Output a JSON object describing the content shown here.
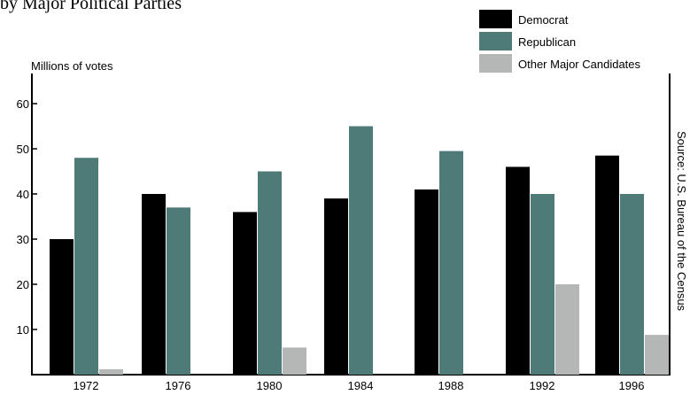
{
  "chart_data": {
    "type": "bar",
    "title": "by Major Political Parties",
    "ylabel": "Millions of votes",
    "xlabel": "",
    "categories": [
      "1972",
      "1976",
      "1980",
      "1984",
      "1988",
      "1992",
      "1996"
    ],
    "series": [
      {
        "name": "Democrat",
        "color": "#000000",
        "values": [
          30,
          40,
          36,
          39,
          41,
          46,
          48.5
        ]
      },
      {
        "name": "Republican",
        "color": "#4e7b78",
        "values": [
          48,
          37,
          45,
          55,
          49.5,
          40,
          40
        ]
      },
      {
        "name": "Other Major Candidates",
        "color": "#b5b6b6",
        "values": [
          1.2,
          0,
          6,
          0,
          0,
          20,
          8.8
        ]
      }
    ],
    "ylim": [
      0,
      65
    ],
    "yticks": [
      "10",
      "20",
      "30",
      "40",
      "50",
      "60"
    ],
    "grid": false,
    "legend_position": "top-right",
    "source": "Source: U.S. Bureau of the Census"
  }
}
